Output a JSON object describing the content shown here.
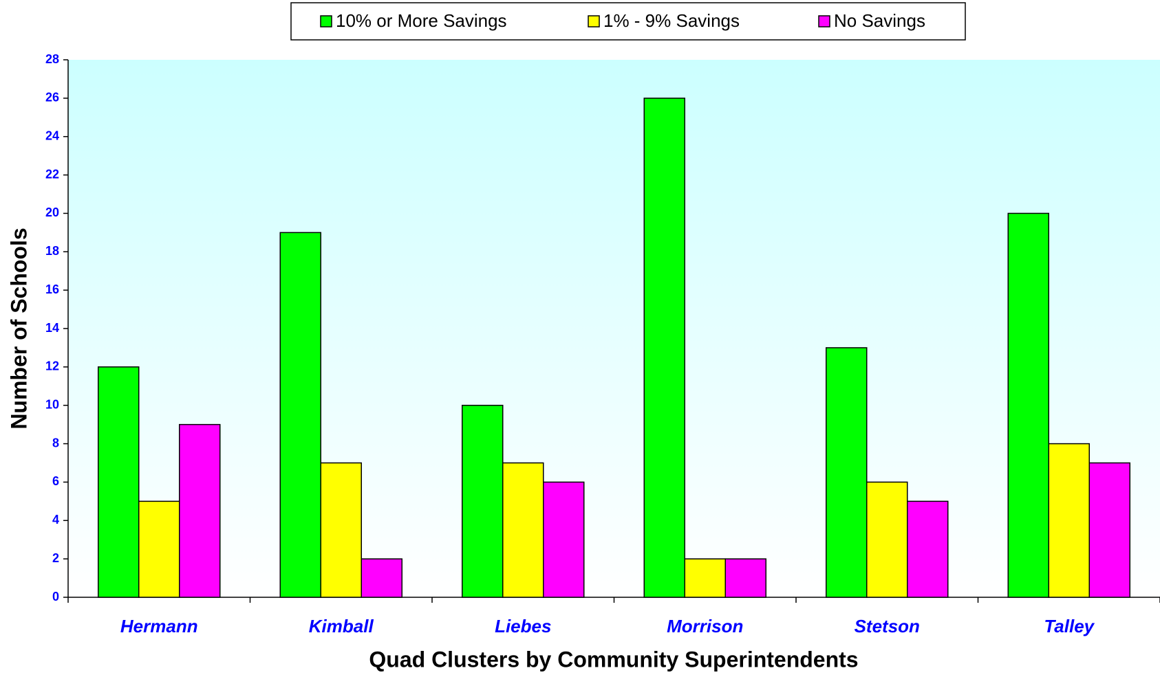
{
  "chart_data": {
    "type": "bar",
    "x_label": "Quad Clusters by Community Superintendents",
    "y_label": "Number of Schools",
    "categories": [
      "Hermann",
      "Kimball",
      "Liebes",
      "Morrison",
      "Stetson",
      "Talley"
    ],
    "series": [
      {
        "name": "10% or More Savings",
        "color": "#00ff00",
        "values": [
          12,
          19,
          10,
          26,
          13,
          20
        ]
      },
      {
        "name": "1% - 9% Savings",
        "color": "#ffff00",
        "values": [
          5,
          7,
          7,
          2,
          6,
          8
        ]
      },
      {
        "name": "No Savings",
        "color": "#ff00ff",
        "values": [
          9,
          2,
          6,
          2,
          5,
          7
        ]
      }
    ],
    "ylim": [
      0,
      28
    ],
    "yticks": [
      0,
      2,
      4,
      6,
      8,
      10,
      12,
      14,
      16,
      18,
      20,
      22,
      24,
      26,
      28
    ],
    "legend": "top",
    "grid": false
  }
}
